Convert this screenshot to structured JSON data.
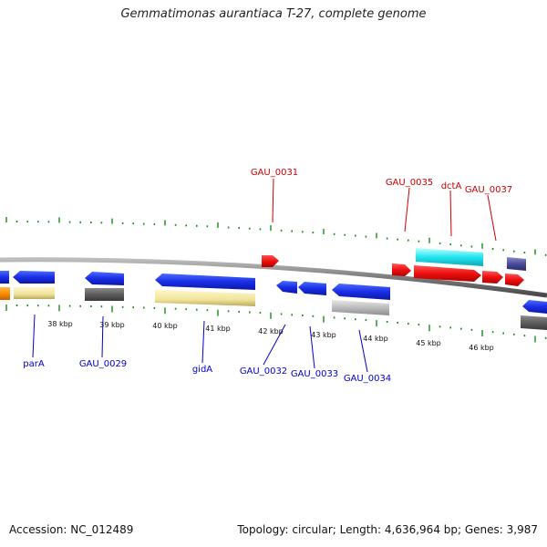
{
  "title": "Gemmatimonas aurantiaca T-27, complete genome",
  "footer": {
    "accession": "Accession: NC_012489",
    "stats": "Topology: circular; Length: 4,636,964 bp; Genes: 3,987"
  },
  "colors": {
    "forward_label": "#cc0000",
    "reverse_label": "#0000cc",
    "tick": "#1a8a1a",
    "backbone": "#808080"
  },
  "scale_labels": [
    "38 kbp",
    "39 kbp",
    "40 kbp",
    "41 kbp",
    "42 kbp",
    "43 kbp",
    "44 kbp",
    "45 kbp",
    "46 kbp"
  ],
  "forward_gene_labels": [
    "GAU_0031",
    "GAU_0035",
    "dctA",
    "GAU_0037"
  ],
  "reverse_gene_labels": [
    "parA",
    "GAU_0029",
    "gidA",
    "GAU_0032",
    "GAU_0033",
    "GAU_0034"
  ]
}
